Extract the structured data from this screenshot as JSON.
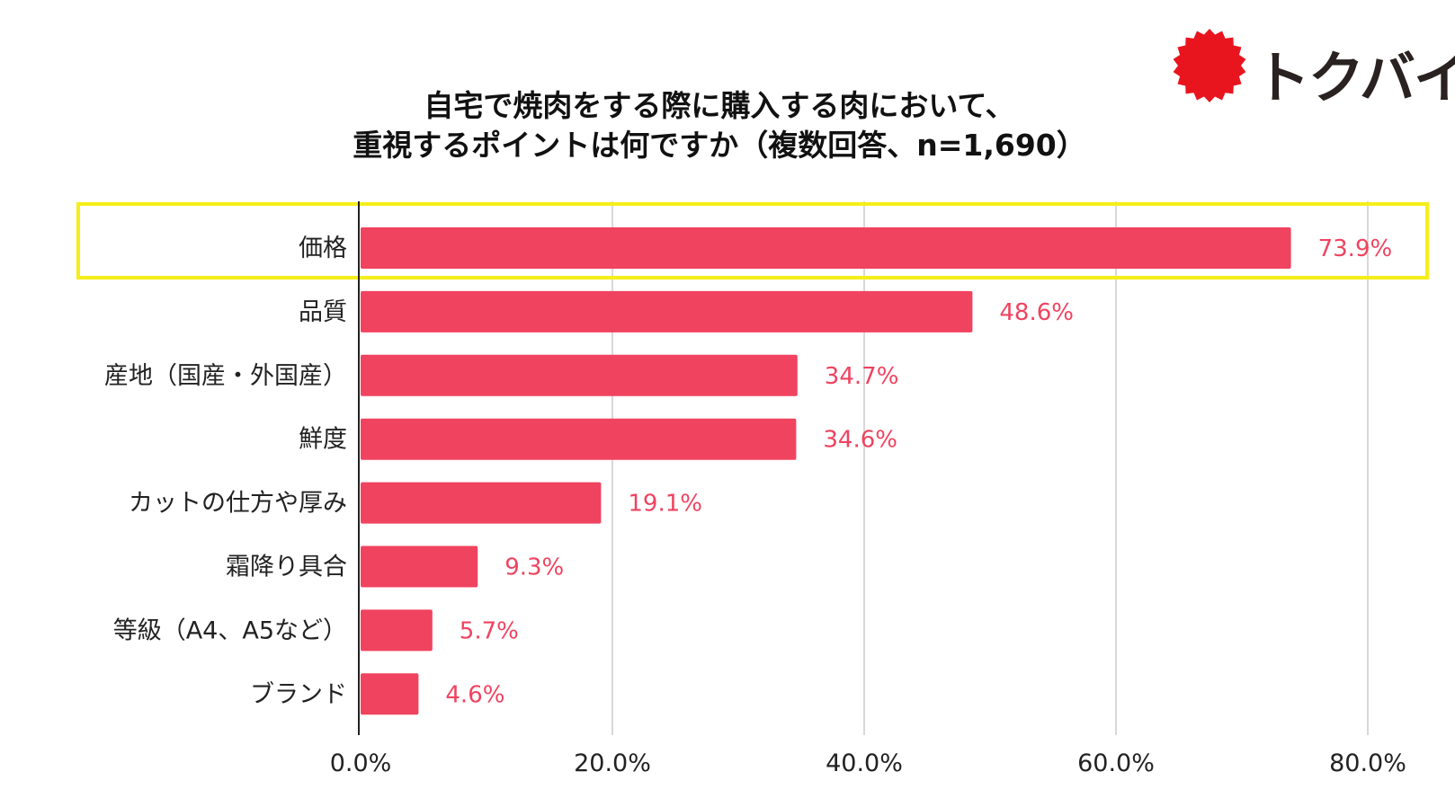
{
  "logo": {
    "text": "トクバイ",
    "badge_color": "#e8151f"
  },
  "chart_data": {
    "type": "bar",
    "orientation": "horizontal",
    "title_lines": [
      "自宅で焼肉をする際に購入する肉において、",
      "重視するポイントは何ですか（複数回答、n=1,690）"
    ],
    "categories": [
      "価格",
      "品質",
      "産地（国産・外国産）",
      "鮮度",
      "カットの仕方や厚み",
      "霜降り具合",
      "等級（A4、A5など）",
      "ブランド"
    ],
    "values": [
      73.9,
      48.6,
      34.7,
      34.6,
      19.1,
      9.3,
      5.7,
      4.6
    ],
    "value_labels": [
      "73.9%",
      "48.6%",
      "34.7%",
      "34.6%",
      "19.1%",
      "9.3%",
      "5.7%",
      "4.6%"
    ],
    "xlim": [
      0,
      80
    ],
    "xticks": [
      0,
      20,
      40,
      60,
      80
    ],
    "xtick_labels": [
      "0.0%",
      "20.0%",
      "40.0%",
      "60.0%",
      "80.0%"
    ],
    "highlighted_category": "価格",
    "grid": "vertical",
    "colors": {
      "bar": "#f0435f",
      "value_label": "#ef4360",
      "highlight_box": "#f5ee1a",
      "grid": "#cccccc",
      "axis": "#222222"
    }
  }
}
